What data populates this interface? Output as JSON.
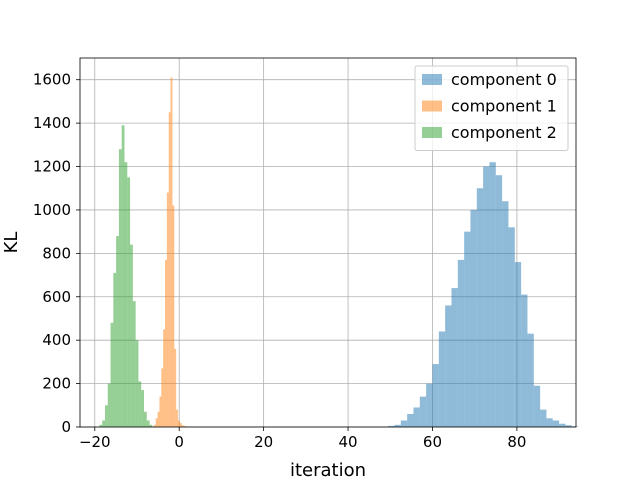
{
  "chart_data": {
    "type": "bar",
    "title": "",
    "xlabel": "iteration",
    "ylabel": "KL",
    "xlim": [
      -23.5,
      94
    ],
    "ylim": [
      0,
      1700
    ],
    "x_ticks": [
      -20,
      0,
      20,
      40,
      60,
      80
    ],
    "y_ticks": [
      0,
      200,
      400,
      600,
      800,
      1000,
      1200,
      1400,
      1600
    ],
    "grid": true,
    "legend_position": "top-right",
    "series": [
      {
        "name": "component 0",
        "color": "#1f77b4",
        "opacity": 0.5,
        "bin_start": 49.5,
        "bin_width": 1.5,
        "values": [
          5,
          10,
          30,
          60,
          90,
          140,
          200,
          290,
          440,
          560,
          640,
          770,
          900,
          1000,
          1100,
          1200,
          1220,
          1160,
          1040,
          920,
          760,
          610,
          430,
          190,
          80,
          40,
          30,
          15,
          8,
          3
        ]
      },
      {
        "name": "component 1",
        "color": "#ff7f0e",
        "opacity": 0.5,
        "bin_start": -6.0,
        "bin_width": 0.44,
        "values": [
          10,
          40,
          70,
          140,
          270,
          450,
          770,
          1080,
          1450,
          1610,
          1020,
          360,
          80,
          30,
          18,
          8,
          5,
          2,
          2
        ]
      },
      {
        "name": "component 2",
        "color": "#2ca02c",
        "opacity": 0.5,
        "bin_start": -18.9,
        "bin_width": 0.66,
        "values": [
          10,
          30,
          100,
          200,
          480,
          710,
          880,
          1280,
          1390,
          1220,
          1150,
          840,
          580,
          400,
          210,
          170,
          70,
          30,
          10
        ]
      }
    ]
  }
}
